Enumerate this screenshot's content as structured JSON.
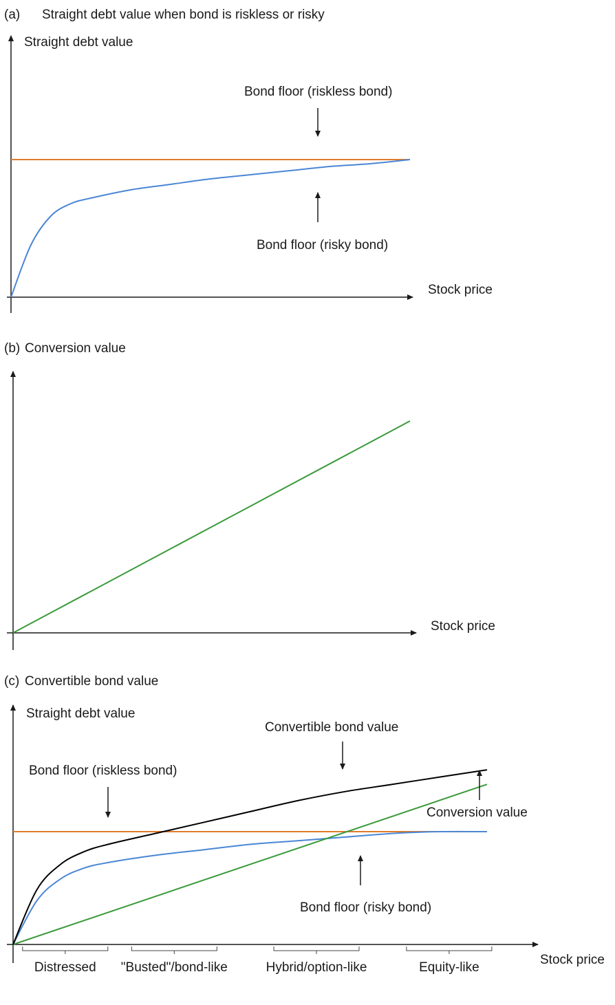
{
  "colors": {
    "riskless": "#e07b2a",
    "risky": "#4a86d4",
    "conversion": "#3a9a3a",
    "convertible": "#000000",
    "axis": "#1a1a1a"
  },
  "chart_data": [
    {
      "type": "line",
      "panel_label": "(a)",
      "title": "Straight debt value when bond is riskless or risky",
      "ylabel": "Straight debt value",
      "xlabel": "Stock price",
      "xlim": [
        0,
        100
      ],
      "ylim": [
        0,
        100
      ],
      "series": [
        {
          "key": "riskless",
          "x": [
            0,
            100
          ],
          "y": [
            100,
            100
          ]
        },
        {
          "key": "risky",
          "x": [
            0,
            5,
            10,
            15,
            20,
            30,
            40,
            50,
            60,
            70,
            80,
            90,
            100
          ],
          "y": [
            0,
            38,
            59,
            68,
            72,
            78,
            82,
            86,
            89,
            92,
            95,
            97,
            100
          ]
        }
      ],
      "annotations": [
        {
          "text": "Bond floor (riskless bond)",
          "arrow": "down"
        },
        {
          "text": "Bond floor (risky bond)",
          "arrow": "up"
        }
      ]
    },
    {
      "type": "line",
      "panel_label": "(b)",
      "title": "Conversion value",
      "xlabel": "Stock price",
      "xlim": [
        0,
        100
      ],
      "ylim": [
        0,
        100
      ],
      "series": [
        {
          "key": "conversion",
          "x": [
            0,
            100
          ],
          "y": [
            0,
            100
          ]
        }
      ]
    },
    {
      "type": "line",
      "panel_label": "(c)",
      "title": "Convertible bond value",
      "ylabel": "Straight debt value",
      "xlabel": "Stock price",
      "xlim": [
        0,
        100
      ],
      "ylim": [
        0,
        100
      ],
      "series": [
        {
          "key": "riskless",
          "x": [
            0,
            100
          ],
          "y": [
            62,
            62
          ]
        },
        {
          "key": "risky",
          "x": [
            0,
            5,
            10,
            15,
            20,
            30,
            40,
            50,
            60,
            70,
            80,
            90,
            100
          ],
          "y": [
            0,
            24,
            36,
            42,
            45,
            49,
            52,
            55,
            57,
            59,
            61,
            62,
            62
          ]
        },
        {
          "key": "conversion",
          "x": [
            0,
            100
          ],
          "y": [
            0,
            88
          ]
        },
        {
          "key": "convertible",
          "x": [
            0,
            5,
            10,
            15,
            20,
            30,
            40,
            50,
            60,
            70,
            80,
            90,
            100
          ],
          "y": [
            0,
            30,
            44,
            51,
            55,
            61,
            67,
            73,
            79,
            84,
            88,
            92,
            96
          ]
        }
      ],
      "annotations": [
        {
          "text": "Convertible bond value",
          "arrow": "down"
        },
        {
          "text": "Bond floor (riskless bond)",
          "arrow": "down"
        },
        {
          "text": "Conversion value",
          "arrow": "up"
        },
        {
          "text": "Bond floor (risky bond)",
          "arrow": "up"
        }
      ],
      "regions": [
        {
          "label": "Distressed",
          "x": [
            2,
            20
          ]
        },
        {
          "label": "\"Busted\"/bond-like",
          "x": [
            25,
            43
          ]
        },
        {
          "label": "Hybrid/option-like",
          "x": [
            55,
            73
          ]
        },
        {
          "label": "Equity-like",
          "x": [
            83,
            101
          ]
        }
      ]
    }
  ]
}
